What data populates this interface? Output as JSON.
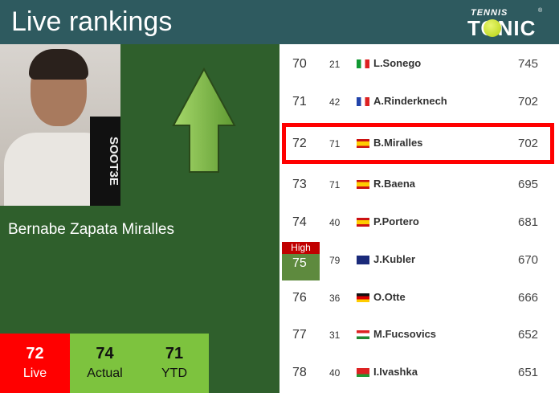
{
  "header": {
    "title": "Live rankings",
    "logo_top": "TENNIS",
    "logo_bottom": "TONIC"
  },
  "player": {
    "name": "Bernabe Zapata Miralles",
    "photo_text": "SOOT3E",
    "movement": "up"
  },
  "stats": [
    {
      "value": "72",
      "label": "Live"
    },
    {
      "value": "74",
      "label": "Actual"
    },
    {
      "value": "71",
      "label": "YTD"
    }
  ],
  "high_badge": "High",
  "rows": [
    {
      "rank": "70",
      "prev": "21",
      "flag": "italy",
      "player": "L.Sonego",
      "points": "745"
    },
    {
      "rank": "71",
      "prev": "42",
      "flag": "france",
      "player": "A.Rinderknech",
      "points": "702"
    },
    {
      "rank": "72",
      "prev": "71",
      "flag": "spain",
      "player": "B.Miralles",
      "points": "702",
      "highlighted": true
    },
    {
      "rank": "73",
      "prev": "71",
      "flag": "spain",
      "player": "R.Baena",
      "points": "695"
    },
    {
      "rank": "74",
      "prev": "40",
      "flag": "spain",
      "player": "P.Portero",
      "points": "681"
    },
    {
      "rank": "75",
      "prev": "79",
      "flag": "australia",
      "player": "J.Kubler",
      "points": "670",
      "career_high": true
    },
    {
      "rank": "76",
      "prev": "36",
      "flag": "germany",
      "player": "O.Otte",
      "points": "666"
    },
    {
      "rank": "77",
      "prev": "31",
      "flag": "hungary",
      "player": "M.Fucsovics",
      "points": "652"
    },
    {
      "rank": "78",
      "prev": "40",
      "flag": "belarus",
      "player": "I.Ivashka",
      "points": "651"
    }
  ],
  "colors": {
    "header": "#2e5a5f",
    "panel": "#2f5f2c",
    "live": "#ff0000",
    "stat": "#7dc33e",
    "highlight": "#ff0000",
    "high": "#c00000"
  }
}
